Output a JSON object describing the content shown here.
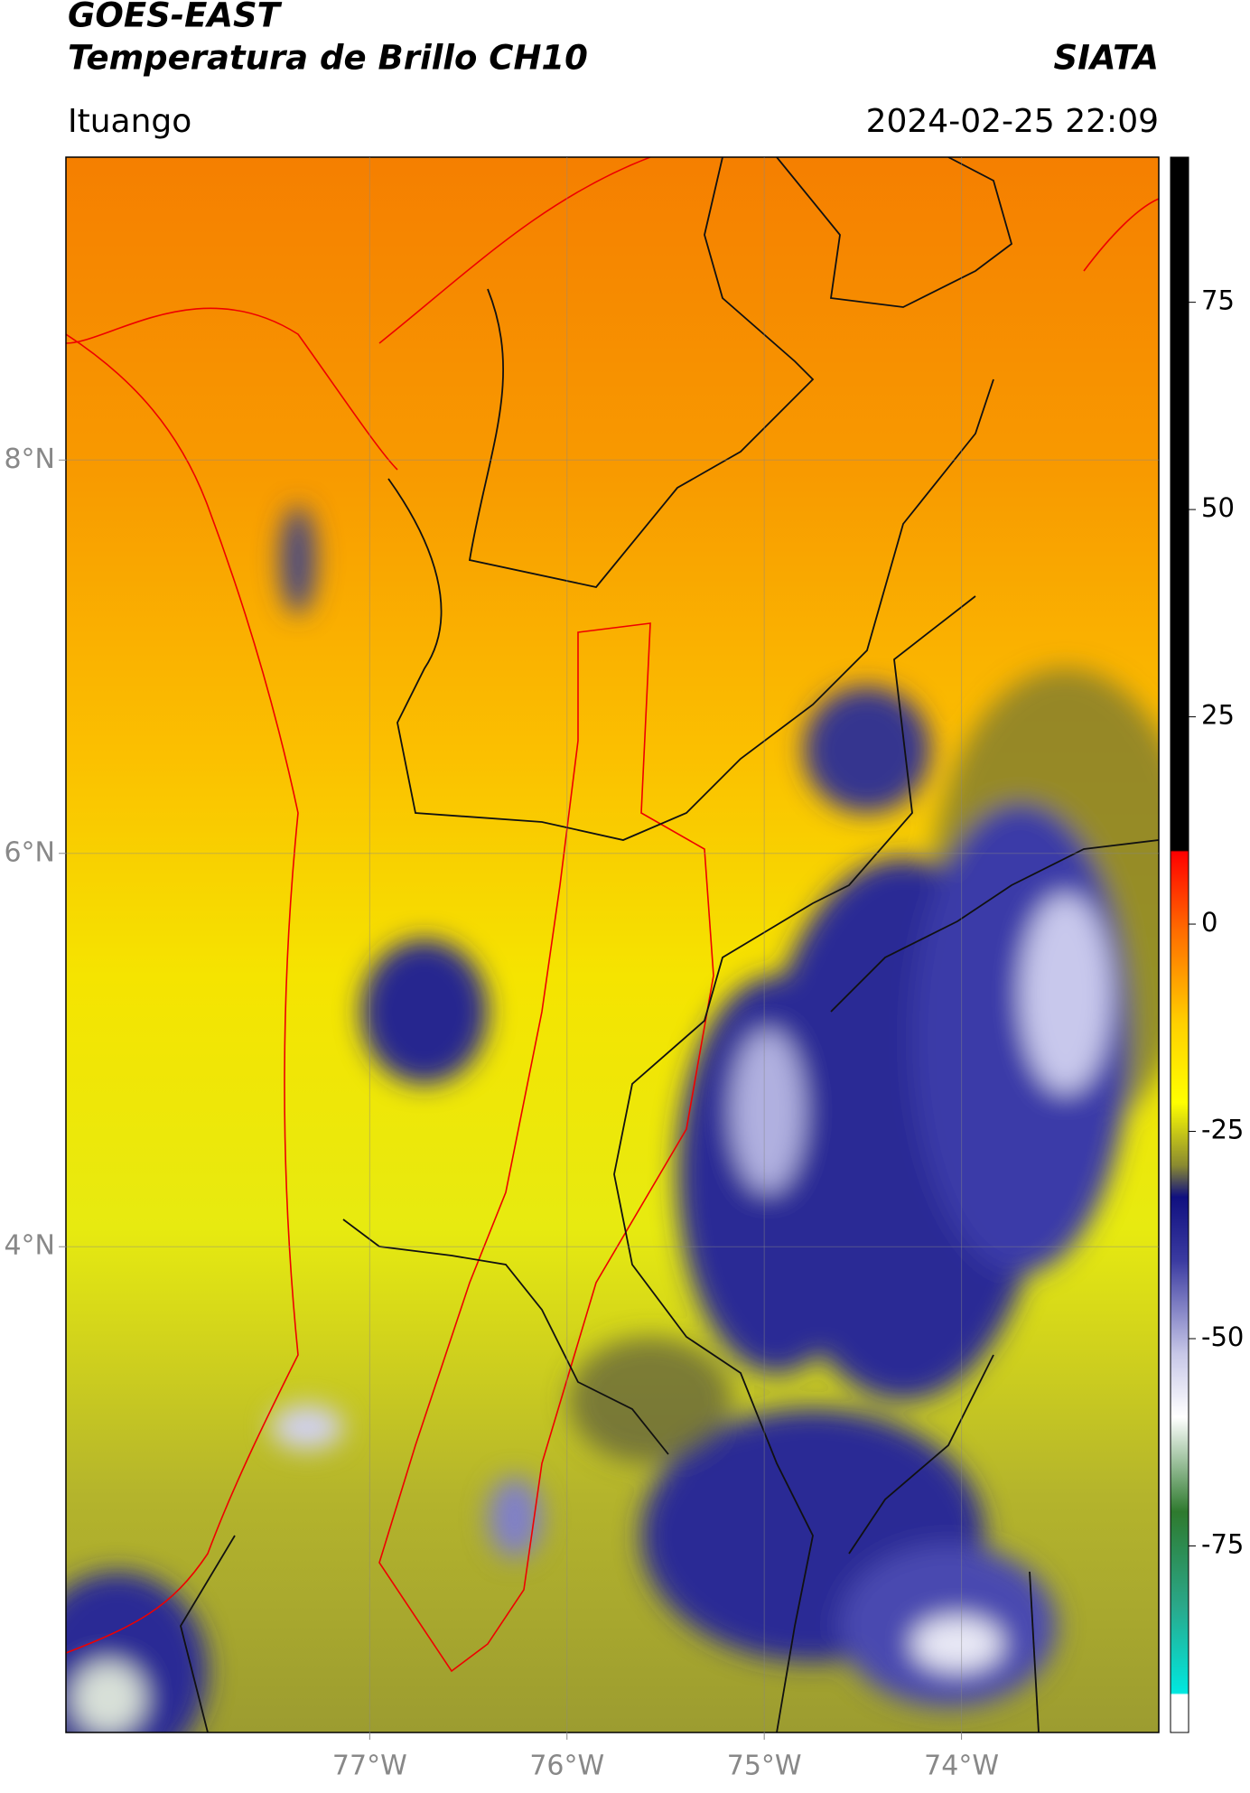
{
  "header": {
    "title": "GOES-EAST",
    "subtitle": "Temperatura de Brillo CH10",
    "agency": "SIATA",
    "location": "Ituango",
    "timestamp": "2024-02-25 22:09"
  },
  "map": {
    "xlim": [
      -78.54,
      -73.0
    ],
    "ylim": [
      1.53,
      9.54
    ],
    "xticks": [
      {
        "value": -77,
        "label": "77°W"
      },
      {
        "value": -76,
        "label": "76°W"
      },
      {
        "value": -75,
        "label": "75°W"
      },
      {
        "value": -74,
        "label": "74°W"
      }
    ],
    "yticks": [
      {
        "value": 8,
        "label": "8°N"
      },
      {
        "value": 6,
        "label": "6°N"
      },
      {
        "value": 4,
        "label": "4°N"
      }
    ],
    "grid": true
  },
  "colorbar": {
    "lim": [
      -97.5,
      92.5
    ],
    "ticks": [
      75,
      50,
      25,
      0,
      -25,
      -50,
      -75
    ]
  }
}
